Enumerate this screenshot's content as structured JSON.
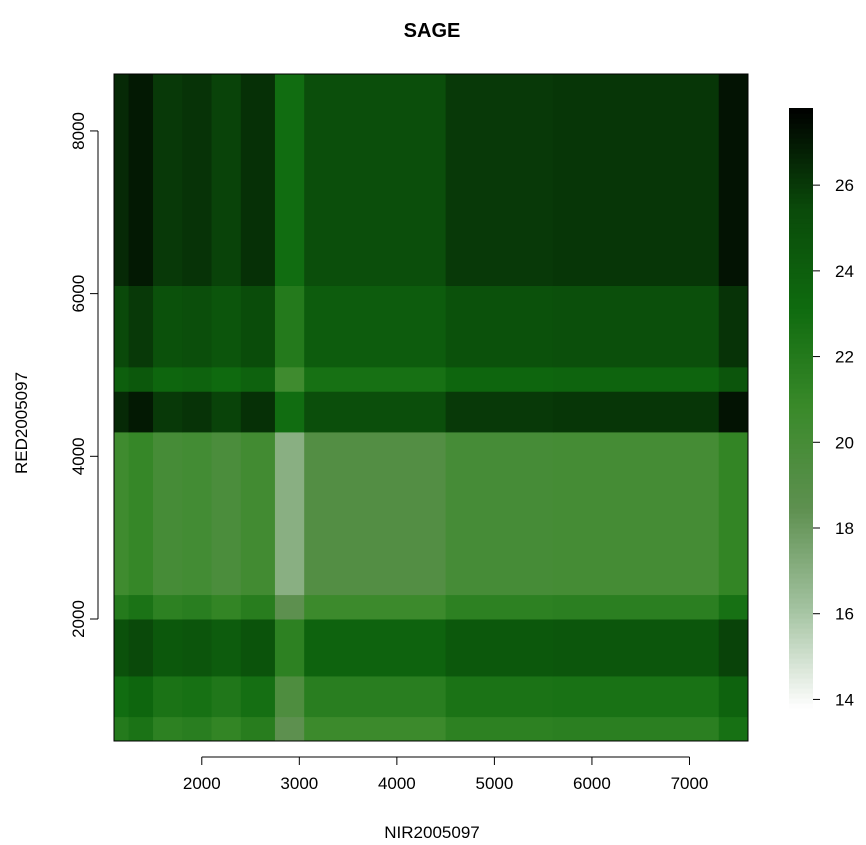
{
  "chart_data": {
    "type": "heatmap",
    "title": "SAGE",
    "xlabel": "NIR2005097",
    "ylabel": "RED2005097",
    "xlim": [
      1100,
      7600
    ],
    "ylim": [
      500,
      8700
    ],
    "x_ticks": [
      2000,
      3000,
      4000,
      5000,
      6000,
      7000
    ],
    "y_ticks": [
      2000,
      4000,
      6000,
      8000
    ],
    "colorbar": {
      "range": [
        13.8,
        27.8
      ],
      "ticks": [
        14,
        16,
        18,
        20,
        22,
        24,
        26
      ],
      "colors": [
        "#ffffff",
        "#a3c2a0",
        "#5e9050",
        "#3a8a2a",
        "#0f6b0f",
        "#0a4a0a",
        "#000000"
      ],
      "placement": "right"
    },
    "x_bands": [
      {
        "from": 1100,
        "to": 1250,
        "offset": 0.5
      },
      {
        "from": 1250,
        "to": 1500,
        "offset": 1.0
      },
      {
        "from": 1500,
        "to": 1800,
        "offset": 0.0
      },
      {
        "from": 1800,
        "to": 2100,
        "offset": 0.2
      },
      {
        "from": 2100,
        "to": 2400,
        "offset": -0.3
      },
      {
        "from": 2400,
        "to": 2750,
        "offset": 0.3
      },
      {
        "from": 2750,
        "to": 3050,
        "offset": -3.0
      },
      {
        "from": 3050,
        "to": 4500,
        "offset": -0.8
      },
      {
        "from": 4500,
        "to": 5600,
        "offset": 0.0
      },
      {
        "from": 5600,
        "to": 7300,
        "offset": 0.1
      },
      {
        "from": 7300,
        "to": 7600,
        "offset": 1.2
      }
    ],
    "y_bands": [
      {
        "from": 500,
        "to": 800,
        "value": 21.5
      },
      {
        "from": 800,
        "to": 1300,
        "value": 22.5
      },
      {
        "from": 1300,
        "to": 2000,
        "value": 24.5
      },
      {
        "from": 2000,
        "to": 2300,
        "value": 21.5
      },
      {
        "from": 2300,
        "to": 4300,
        "value": 20.0
      },
      {
        "from": 4300,
        "to": 4800,
        "value": 26.0
      },
      {
        "from": 4800,
        "to": 5100,
        "value": 23.5
      },
      {
        "from": 5100,
        "to": 6100,
        "value": 25.0
      },
      {
        "from": 6100,
        "to": 8700,
        "value": 26.0
      }
    ]
  }
}
